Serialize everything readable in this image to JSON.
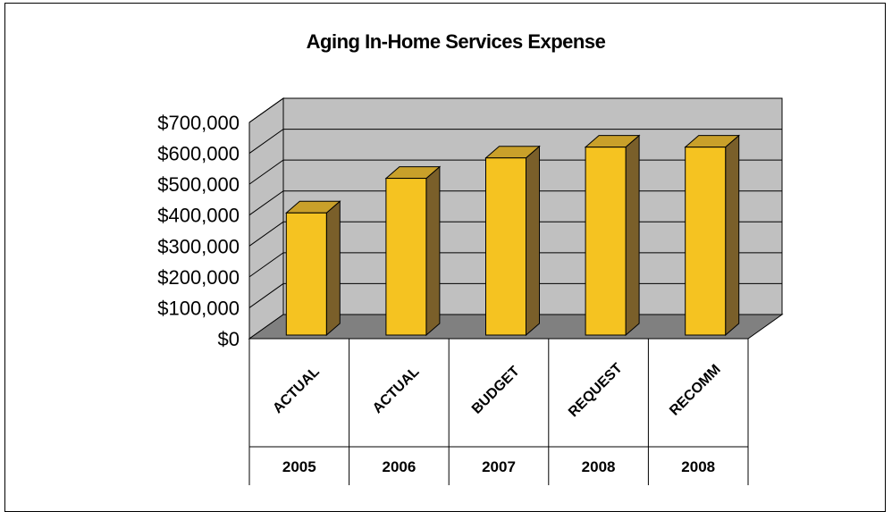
{
  "chart_data": {
    "type": "bar",
    "title": "Aging In-Home Services Expense",
    "categories": [
      "ACTUAL",
      "ACTUAL",
      "BUDGET",
      "REQUEST",
      "RECOMM"
    ],
    "years": [
      "2005",
      "2006",
      "2007",
      "2008",
      "2008"
    ],
    "values": [
      407000,
      519000,
      585000,
      620000,
      620000
    ],
    "yticks": [
      "$0",
      "$100,000",
      "$200,000",
      "$300,000",
      "$400,000",
      "$500,000",
      "$600,000",
      "$700,000"
    ],
    "ylim": [
      0,
      700000
    ],
    "grid": true,
    "style": "3d-column",
    "colors": {
      "bar_front": "#f5c321",
      "bar_top": "#c9a02a",
      "bar_side": "#7a5f2a",
      "wall": "#c0c0c0",
      "floor": "#808080"
    }
  }
}
